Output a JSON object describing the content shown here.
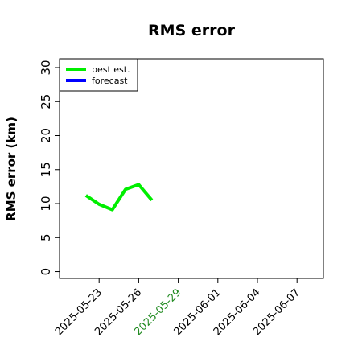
{
  "chart_data": {
    "type": "line",
    "title": "RMS error",
    "y_label": "RMS error (km)",
    "x": [
      "2025-05-22",
      "2025-05-23",
      "2025-05-24",
      "2025-05-25",
      "2025-05-26",
      "2025-05-27"
    ],
    "series": [
      {
        "name": "best est.",
        "color": "#00ee00",
        "values": [
          11.2,
          9.9,
          9.1,
          12.1,
          12.8,
          10.5
        ]
      },
      {
        "name": "forecast",
        "color": "#0000ff",
        "values": [
          null,
          null,
          null,
          null,
          null,
          null
        ]
      }
    ],
    "xlim": [
      "2025-05-20",
      "2025-06-09"
    ],
    "xticks": [
      "2025-05-23",
      "2025-05-26",
      "2025-05-29",
      "2025-06-01",
      "2025-06-04",
      "2025-06-07"
    ],
    "highlight": {
      "xtick": 2,
      "color": "#228b22"
    },
    "ylim": [
      -1,
      31.3
    ],
    "yticks": [
      0,
      5,
      10,
      15,
      20,
      25,
      30
    ],
    "legend": "top-left"
  }
}
